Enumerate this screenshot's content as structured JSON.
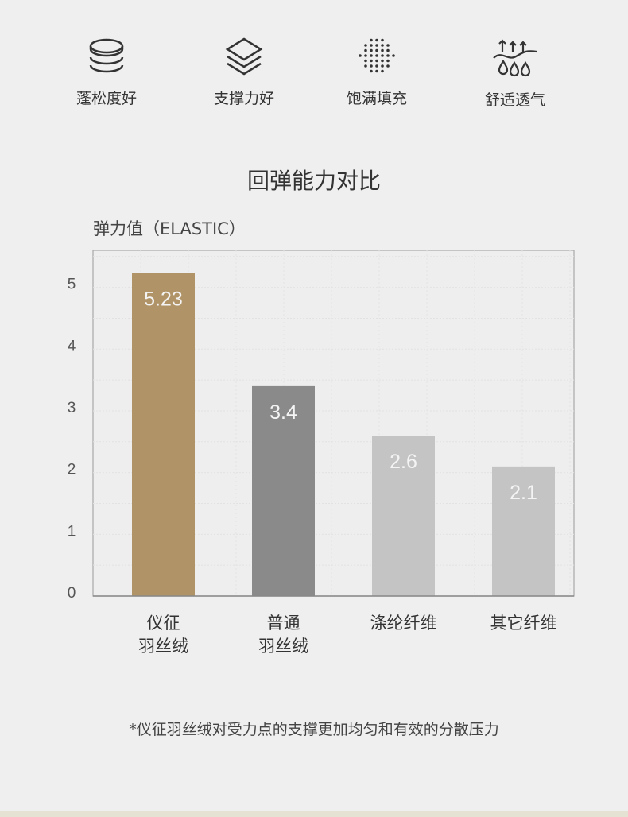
{
  "features": [
    {
      "icon": "stacked-discs-icon",
      "label": "蓬松度好"
    },
    {
      "icon": "layers-icon",
      "label": "支撑力好"
    },
    {
      "icon": "dot-grid-icon",
      "label": "饱满填充"
    },
    {
      "icon": "breathable-icon",
      "label": "舒适透气"
    }
  ],
  "chart_data": {
    "type": "bar",
    "title": "回弹能力对比",
    "ylabel": "弹力值（ELASTIC）",
    "xlabel": "",
    "categories": [
      [
        "仪征",
        "羽丝绒"
      ],
      [
        "普通",
        "羽丝绒"
      ],
      [
        "涤纶纤维"
      ],
      [
        "其它纤维"
      ]
    ],
    "values": [
      5.23,
      3.4,
      2.6,
      2.1
    ],
    "value_labels": [
      "5.23",
      "3.4",
      "2.6",
      "2.1"
    ],
    "colors": [
      "#b09467",
      "#8a8a8a",
      "#c4c4c4",
      "#c4c4c4"
    ],
    "yticks": [
      "0",
      "1",
      "2",
      "3",
      "4",
      "5"
    ],
    "ylim": [
      0,
      5.6
    ],
    "grid": true,
    "legend": "none"
  },
  "footnote": "*仪征羽丝绒对受力点的支撑更加均匀和有效的分散压力"
}
